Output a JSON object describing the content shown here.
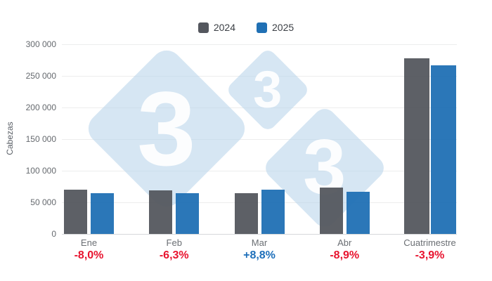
{
  "chart_data": {
    "type": "bar",
    "title": "",
    "ylabel": "Cabezas",
    "categories": [
      "Ene",
      "Feb",
      "Mar",
      "Abr",
      "Cuatrimestre"
    ],
    "series": [
      {
        "name": "2024",
        "color": "#54575E",
        "values": [
          70200,
          69100,
          64700,
          73600,
          277600
        ]
      },
      {
        "name": "2025",
        "color": "#2070B4",
        "values": [
          64600,
          64700,
          70400,
          67000,
          266700
        ]
      }
    ],
    "variation_labels": [
      {
        "text": "-8,0%",
        "color": "#E8142F"
      },
      {
        "text": "-6,3%",
        "color": "#E8142F"
      },
      {
        "text": "+8,8%",
        "color": "#1D6FBA"
      },
      {
        "text": "-8,9%",
        "color": "#E8142F"
      },
      {
        "text": "-3,9%",
        "color": "#E8142F"
      }
    ],
    "y_ticks": [
      "300 000",
      "250 000",
      "200 000",
      "150 000",
      "100 000",
      "50 000",
      "0"
    ],
    "ylim": [
      0,
      300000
    ],
    "grid": true,
    "legend_position": "top-center",
    "watermark": {
      "glyph": "3",
      "color": "#DAE7F3"
    }
  }
}
